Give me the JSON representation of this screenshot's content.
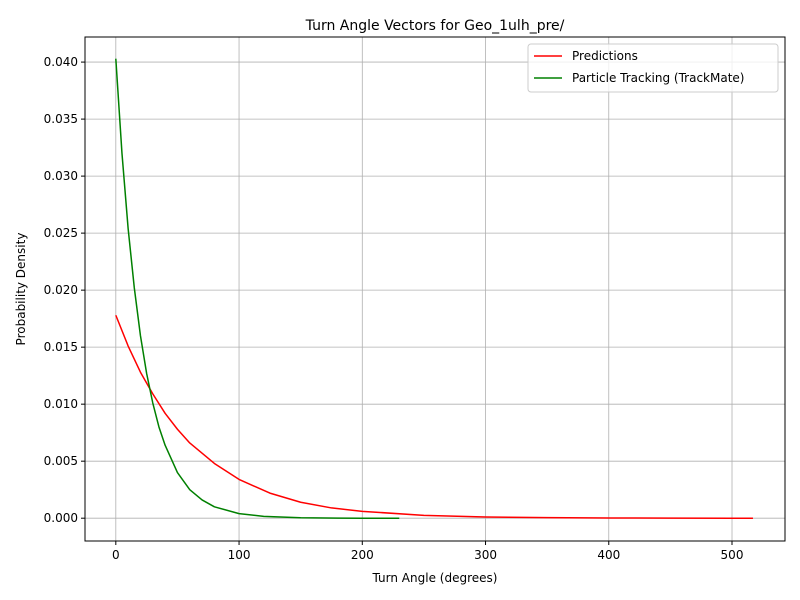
{
  "chart_data": {
    "type": "line",
    "title": "Turn Angle Vectors for Geo_1ulh_pre/",
    "xlabel": "Turn Angle (degrees)",
    "ylabel": "Probability Density",
    "xlim": [
      -25,
      543
    ],
    "ylim": [
      -0.002,
      0.0422
    ],
    "x_ticks": [
      0,
      100,
      200,
      300,
      400,
      500
    ],
    "y_ticks": [
      0.0,
      0.005,
      0.01,
      0.015,
      0.02,
      0.025,
      0.03,
      0.035,
      0.04
    ],
    "y_tick_labels": [
      "0.000",
      "0.005",
      "0.010",
      "0.015",
      "0.020",
      "0.025",
      "0.030",
      "0.035",
      "0.040"
    ],
    "grid": true,
    "legend_position": "top-right",
    "series": [
      {
        "name": "Predictions",
        "color": "#ff0000",
        "x": [
          0,
          10,
          20,
          30,
          40,
          50,
          60,
          80,
          100,
          125,
          150,
          175,
          200,
          250,
          300,
          350,
          400,
          450,
          500,
          517
        ],
        "y": [
          0.0178,
          0.0151,
          0.0128,
          0.0109,
          0.0092,
          0.0078,
          0.0066,
          0.0048,
          0.0034,
          0.0022,
          0.0014,
          0.0009,
          0.0006,
          0.00025,
          0.00011,
          5e-05,
          2e-05,
          1e-05,
          0.0,
          0.0
        ]
      },
      {
        "name": "Particle Tracking (TrackMate)",
        "color": "#008000",
        "x": [
          0,
          5,
          10,
          15,
          20,
          25,
          30,
          35,
          40,
          50,
          60,
          70,
          80,
          100,
          120,
          150,
          180,
          200,
          230
        ],
        "y": [
          0.0403,
          0.032,
          0.0254,
          0.0202,
          0.016,
          0.0127,
          0.0101,
          0.008,
          0.0064,
          0.004,
          0.0025,
          0.0016,
          0.001,
          0.0004,
          0.00016,
          4e-05,
          1e-05,
          0.0,
          0.0
        ]
      }
    ]
  }
}
